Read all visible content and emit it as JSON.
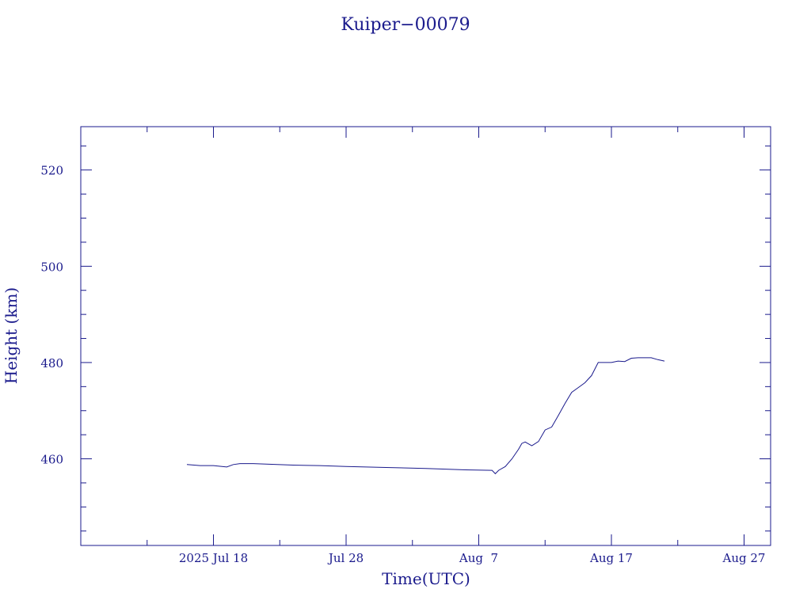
{
  "chart_data": {
    "type": "line",
    "title": "Kuiper−00079",
    "xlabel": "Time(UTC)",
    "ylabel": "Height (km)",
    "color": "#1a1a8c",
    "xlim": [
      "2025-07-08",
      "2025-08-29"
    ],
    "ylim": [
      442,
      529
    ],
    "x_ticks": [
      {
        "date": "2025-07-18",
        "label": "2025 Jul 18"
      },
      {
        "date": "2025-07-28",
        "label": "Jul 28"
      },
      {
        "date": "2025-08-07",
        "label": "Aug  7"
      },
      {
        "date": "2025-08-17",
        "label": "Aug 17"
      },
      {
        "date": "2025-08-27",
        "label": "Aug 27"
      }
    ],
    "y_ticks": [
      460,
      480,
      500,
      520
    ],
    "y_tick_labels": [
      "460",
      "480",
      "500",
      "520"
    ],
    "grid": false,
    "series": [
      {
        "x": [
          "2025-07-16 00:00",
          "2025-07-17 00:00",
          "2025-07-18 00:00",
          "2025-07-19 00:00",
          "2025-07-19 12:00",
          "2025-07-20 00:00",
          "2025-07-21 00:00",
          "2025-07-22 00:00",
          "2025-07-24 00:00",
          "2025-07-26 00:00",
          "2025-07-28 00:00",
          "2025-07-31 00:00",
          "2025-08-03 00:00",
          "2025-08-06 00:00",
          "2025-08-08 00:00",
          "2025-08-08 06:00",
          "2025-08-08 12:00",
          "2025-08-09 00:00",
          "2025-08-09 12:00",
          "2025-08-10 00:00",
          "2025-08-10 06:00",
          "2025-08-10 12:00",
          "2025-08-11 00:00",
          "2025-08-11 12:00",
          "2025-08-12 00:00",
          "2025-08-12 12:00",
          "2025-08-13 00:00",
          "2025-08-13 12:00",
          "2025-08-14 00:00",
          "2025-08-14 12:00",
          "2025-08-15 00:00",
          "2025-08-15 12:00",
          "2025-08-16 00:00",
          "2025-08-16 12:00",
          "2025-08-17 00:00",
          "2025-08-17 12:00",
          "2025-08-18 00:00",
          "2025-08-18 12:00",
          "2025-08-19 00:00",
          "2025-08-19 12:00",
          "2025-08-20 00:00",
          "2025-08-20 12:00",
          "2025-08-21 00:00"
        ],
        "y": [
          458.8,
          458.6,
          458.6,
          458.3,
          458.8,
          459.0,
          459.0,
          458.9,
          458.7,
          458.6,
          458.4,
          458.2,
          458.0,
          457.7,
          457.6,
          456.9,
          457.6,
          458.4,
          460.0,
          462.0,
          463.2,
          463.5,
          462.7,
          463.6,
          466.0,
          466.6,
          469.0,
          471.5,
          473.8,
          474.8,
          475.8,
          477.3,
          480.0,
          480.0,
          480.0,
          480.3,
          480.2,
          480.9,
          481.0,
          481.0,
          481.0,
          480.6,
          480.3
        ]
      }
    ]
  }
}
